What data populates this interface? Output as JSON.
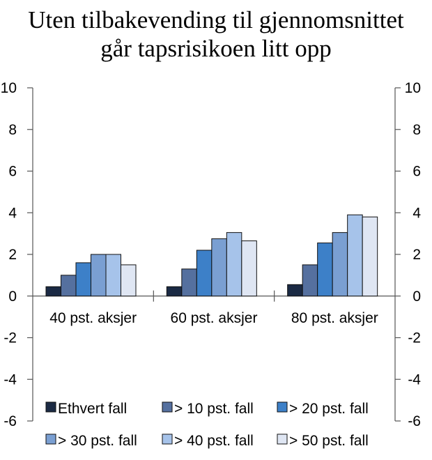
{
  "chart_data": {
    "type": "bar",
    "title_lines": [
      "Uten tilbakevending til gjennomsnittet",
      "går tapsrisikoen litt opp"
    ],
    "categories": [
      "40 pst. aksjer",
      "60 pst. aksjer",
      "80 pst. aksjer"
    ],
    "ylim": [
      -6,
      10
    ],
    "yticks": [
      "10",
      "8",
      "6",
      "4",
      "2",
      "0",
      "-2",
      "-4",
      "-6"
    ],
    "ytick_values": [
      10,
      8,
      6,
      4,
      2,
      0,
      -2,
      -4,
      -6
    ],
    "grid": false,
    "legend_position": "bottom",
    "series": [
      {
        "name": "Ethvert fall",
        "color": "#1b2a44",
        "values": [
          0.45,
          0.45,
          0.55
        ]
      },
      {
        "name": "> 10 pst. fall",
        "color": "#55709f",
        "values": [
          1.0,
          1.3,
          1.5
        ]
      },
      {
        "name": "> 20 pst. fall",
        "color": "#3d80c8",
        "values": [
          1.6,
          2.2,
          2.55
        ]
      },
      {
        "name": "> 30 pst. fall",
        "color": "#7a9fd2",
        "values": [
          2.0,
          2.75,
          3.05
        ]
      },
      {
        "name": "> 40 pst. fall",
        "color": "#a6c3ea",
        "values": [
          2.0,
          3.05,
          3.9
        ]
      },
      {
        "name": "> 50 pst. fall",
        "color": "#dfe6f3",
        "values": [
          1.5,
          2.65,
          3.8
        ]
      }
    ]
  }
}
